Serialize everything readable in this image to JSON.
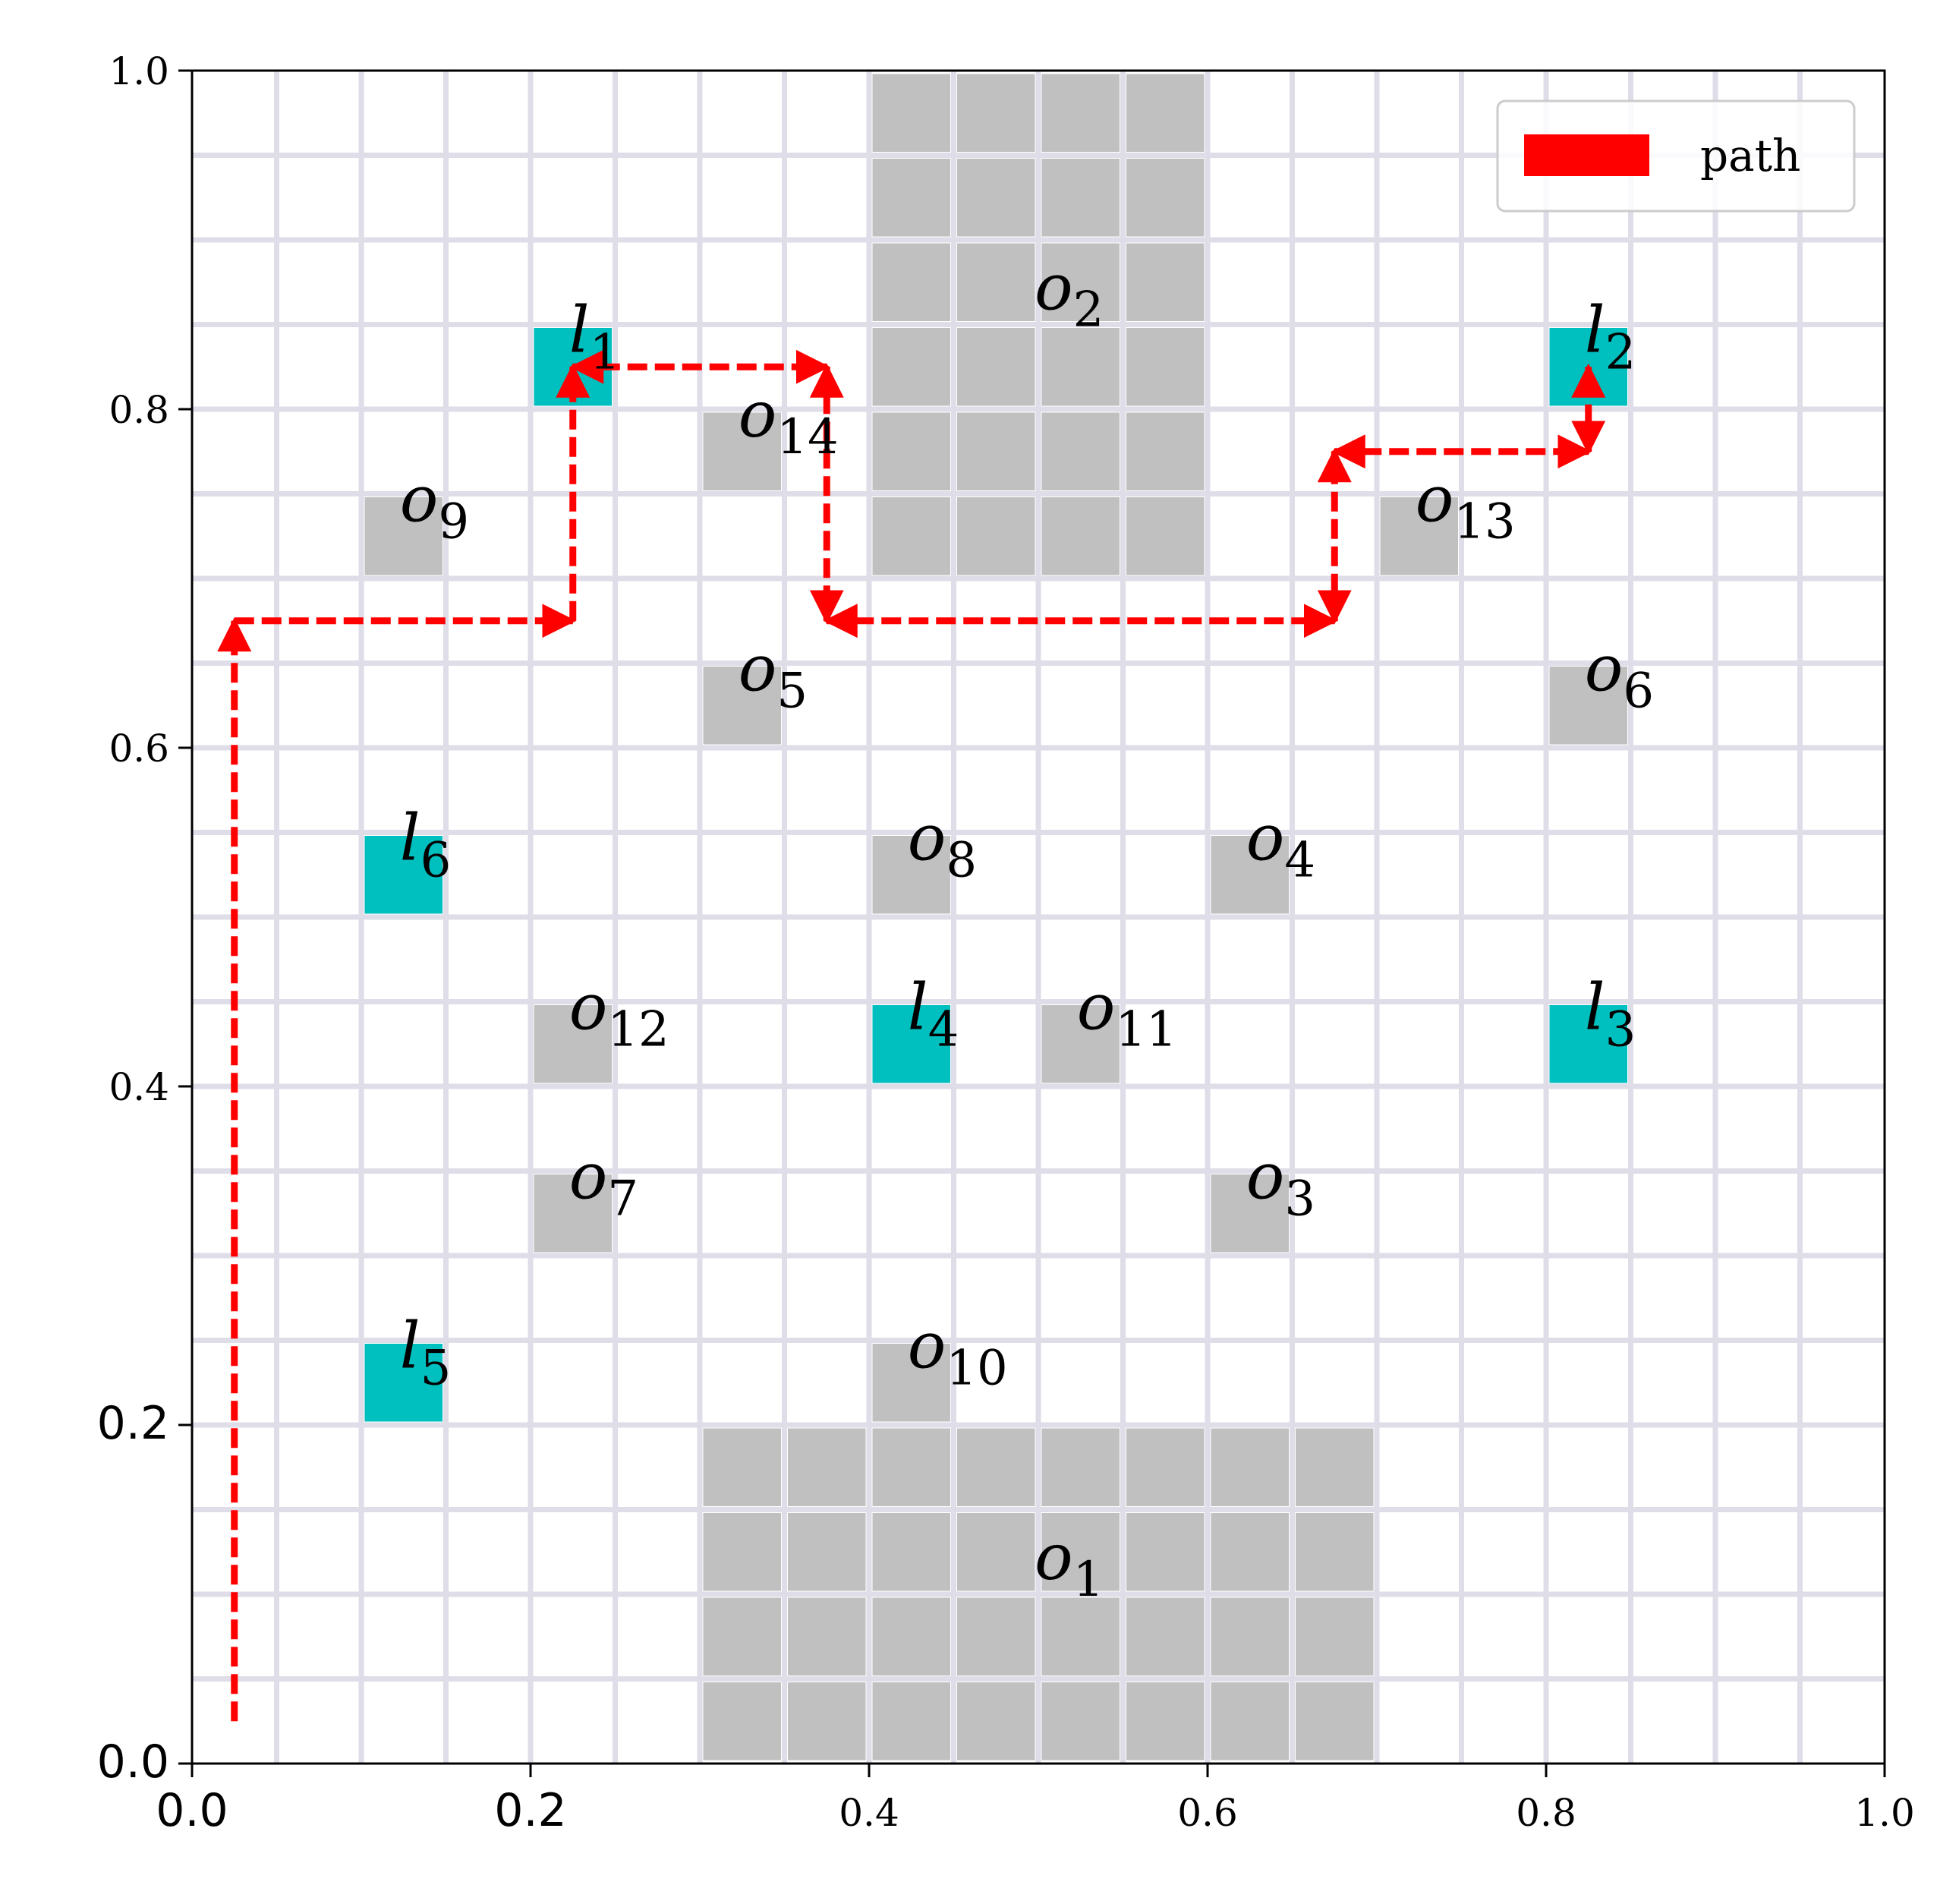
{
  "chart_data": {
    "type": "grid-map",
    "xlim": [
      0,
      1
    ],
    "ylim": [
      0,
      1
    ],
    "grid": true,
    "grid_step": 0.05,
    "x_ticks": [
      {
        "value": 0.0,
        "label": "0.0",
        "font": "sans"
      },
      {
        "value": 0.2,
        "label": "0.2",
        "font": "sans"
      },
      {
        "value": 0.4,
        "label": "0.4",
        "font": "serif"
      },
      {
        "value": 0.6,
        "label": "0.6",
        "font": "serif"
      },
      {
        "value": 0.8,
        "label": "0.8",
        "font": "serif"
      },
      {
        "value": 1.0,
        "label": "1.0",
        "font": "serif"
      }
    ],
    "y_ticks": [
      {
        "value": 0.0,
        "label": "0.0",
        "font": "sans"
      },
      {
        "value": 0.2,
        "label": "0.2",
        "font": "sans"
      },
      {
        "value": 0.4,
        "label": "0.4",
        "font": "serif"
      },
      {
        "value": 0.6,
        "label": "0.6",
        "font": "serif"
      },
      {
        "value": 0.8,
        "label": "0.8",
        "font": "serif"
      },
      {
        "value": 1.0,
        "label": "1.0",
        "font": "serif"
      }
    ],
    "colors": {
      "obstacle": "#c0c0c0",
      "landmark": "#00bfbf",
      "path": "#ff0000",
      "grid": "#dedde8"
    },
    "obstacles": [
      {
        "label_base": "o",
        "label_sub": "1",
        "x0": 0.3,
        "y0": 0.0,
        "x1": 0.7,
        "y1": 0.2,
        "label_x": 0.5,
        "label_y": 0.1
      },
      {
        "label_base": "o",
        "label_sub": "2",
        "x0": 0.4,
        "y0": 0.7,
        "x1": 0.6,
        "y1": 1.0,
        "label_x": 0.5,
        "label_y": 0.85
      },
      {
        "label_base": "o",
        "label_sub": "3",
        "x0": 0.6,
        "y0": 0.3,
        "x1": 0.65,
        "y1": 0.35,
        "label_x": 0.625,
        "label_y": 0.325
      },
      {
        "label_base": "o",
        "label_sub": "4",
        "x0": 0.6,
        "y0": 0.5,
        "x1": 0.65,
        "y1": 0.55,
        "label_x": 0.625,
        "label_y": 0.525
      },
      {
        "label_base": "o",
        "label_sub": "5",
        "x0": 0.3,
        "y0": 0.6,
        "x1": 0.35,
        "y1": 0.65,
        "label_x": 0.325,
        "label_y": 0.625
      },
      {
        "label_base": "o",
        "label_sub": "6",
        "x0": 0.8,
        "y0": 0.6,
        "x1": 0.85,
        "y1": 0.65,
        "label_x": 0.825,
        "label_y": 0.625
      },
      {
        "label_base": "o",
        "label_sub": "7",
        "x0": 0.2,
        "y0": 0.3,
        "x1": 0.25,
        "y1": 0.35,
        "label_x": 0.225,
        "label_y": 0.325
      },
      {
        "label_base": "o",
        "label_sub": "8",
        "x0": 0.4,
        "y0": 0.5,
        "x1": 0.45,
        "y1": 0.55,
        "label_x": 0.425,
        "label_y": 0.525
      },
      {
        "label_base": "o",
        "label_sub": "9",
        "x0": 0.1,
        "y0": 0.7,
        "x1": 0.15,
        "y1": 0.75,
        "label_x": 0.125,
        "label_y": 0.725
      },
      {
        "label_base": "o",
        "label_sub": "10",
        "x0": 0.4,
        "y0": 0.2,
        "x1": 0.45,
        "y1": 0.25,
        "label_x": 0.425,
        "label_y": 0.225
      },
      {
        "label_base": "o",
        "label_sub": "11",
        "x0": 0.5,
        "y0": 0.4,
        "x1": 0.55,
        "y1": 0.45,
        "label_x": 0.525,
        "label_y": 0.425
      },
      {
        "label_base": "o",
        "label_sub": "12",
        "x0": 0.2,
        "y0": 0.4,
        "x1": 0.25,
        "y1": 0.45,
        "label_x": 0.225,
        "label_y": 0.425
      },
      {
        "label_base": "o",
        "label_sub": "13",
        "x0": 0.7,
        "y0": 0.7,
        "x1": 0.75,
        "y1": 0.75,
        "label_x": 0.725,
        "label_y": 0.725
      },
      {
        "label_base": "o",
        "label_sub": "14",
        "x0": 0.3,
        "y0": 0.75,
        "x1": 0.35,
        "y1": 0.8,
        "label_x": 0.325,
        "label_y": 0.775
      }
    ],
    "landmarks": [
      {
        "label_base": "l",
        "label_sub": "1",
        "x0": 0.2,
        "y0": 0.8,
        "x1": 0.25,
        "y1": 0.85,
        "label_x": 0.225,
        "label_y": 0.825
      },
      {
        "label_base": "l",
        "label_sub": "2",
        "x0": 0.8,
        "y0": 0.8,
        "x1": 0.85,
        "y1": 0.85,
        "label_x": 0.825,
        "label_y": 0.825
      },
      {
        "label_base": "l",
        "label_sub": "3",
        "x0": 0.8,
        "y0": 0.4,
        "x1": 0.85,
        "y1": 0.45,
        "label_x": 0.825,
        "label_y": 0.425
      },
      {
        "label_base": "l",
        "label_sub": "4",
        "x0": 0.4,
        "y0": 0.4,
        "x1": 0.45,
        "y1": 0.45,
        "label_x": 0.425,
        "label_y": 0.425
      },
      {
        "label_base": "l",
        "label_sub": "5",
        "x0": 0.1,
        "y0": 0.2,
        "x1": 0.15,
        "y1": 0.25,
        "label_x": 0.125,
        "label_y": 0.225
      },
      {
        "label_base": "l",
        "label_sub": "6",
        "x0": 0.1,
        "y0": 0.5,
        "x1": 0.15,
        "y1": 0.55,
        "label_x": 0.125,
        "label_y": 0.525
      }
    ],
    "path": {
      "name": "path",
      "segments": [
        {
          "from": [
            0.025,
            0.025
          ],
          "to": [
            0.025,
            0.675
          ],
          "heads": "end"
        },
        {
          "from": [
            0.025,
            0.675
          ],
          "to": [
            0.225,
            0.675
          ],
          "heads": "end"
        },
        {
          "from": [
            0.225,
            0.675
          ],
          "to": [
            0.225,
            0.825
          ],
          "heads": "end"
        },
        {
          "from": [
            0.225,
            0.825
          ],
          "to": [
            0.375,
            0.825
          ],
          "heads": "both"
        },
        {
          "from": [
            0.375,
            0.825
          ],
          "to": [
            0.375,
            0.675
          ],
          "heads": "both"
        },
        {
          "from": [
            0.375,
            0.675
          ],
          "to": [
            0.675,
            0.675
          ],
          "heads": "both"
        },
        {
          "from": [
            0.675,
            0.675
          ],
          "to": [
            0.675,
            0.775
          ],
          "heads": "both"
        },
        {
          "from": [
            0.675,
            0.775
          ],
          "to": [
            0.825,
            0.775
          ],
          "heads": "both"
        },
        {
          "from": [
            0.825,
            0.775
          ],
          "to": [
            0.825,
            0.825
          ],
          "heads": "both"
        }
      ]
    },
    "legend": {
      "position": "top-right",
      "entries": [
        "path"
      ]
    }
  }
}
